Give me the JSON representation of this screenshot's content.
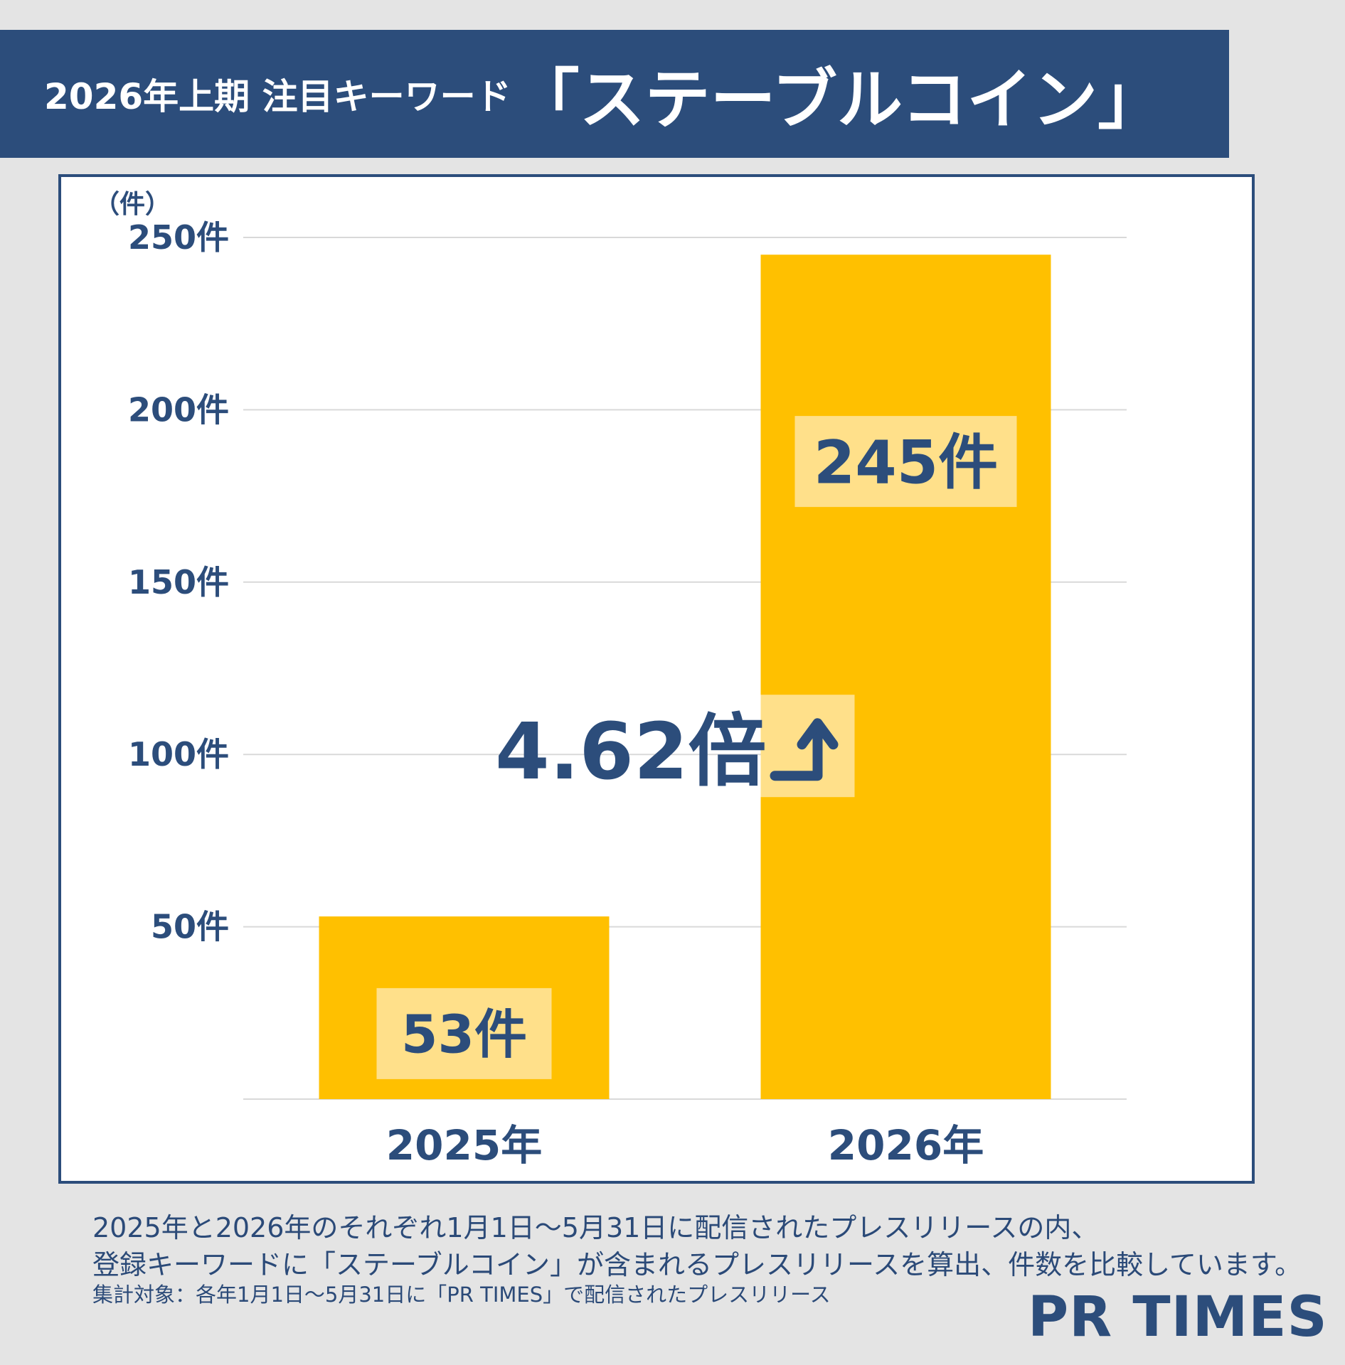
{
  "title": {
    "prefix": "2026年上期 注目キーワード",
    "keyword": "「ステーブルコイン」"
  },
  "chart_data": {
    "type": "bar",
    "y_unit_label": "（件）",
    "categories": [
      "2025年",
      "2026年"
    ],
    "values": [
      53,
      245
    ],
    "value_labels": [
      "53件",
      "245件"
    ],
    "ylim": [
      0,
      250
    ],
    "y_ticks": [
      50,
      100,
      150,
      200,
      250
    ],
    "y_tick_labels": [
      "50件",
      "100件",
      "150件",
      "200件",
      "250件"
    ],
    "grid": true,
    "annotation": "4.62倍",
    "annotation_icon": "up-right-arrow-icon",
    "bar_color": "#ffc000",
    "label_bg_color": "#ffe08a"
  },
  "notes": {
    "line1": "2025年と2026年のそれぞれ1月1日～5月31日に配信されたプレスリリースの内、",
    "line2": "登録キーワードに「ステーブルコイン」が含まれるプレスリリースを算出、件数を比較しています。",
    "line3": "集計対象：各年1月1日～5月31日に「PR TIMES」で配信されたプレスリリース"
  },
  "logo": "PR TIMES",
  "colors": {
    "navy": "#2c4d7b",
    "background": "#e4e4e4"
  }
}
